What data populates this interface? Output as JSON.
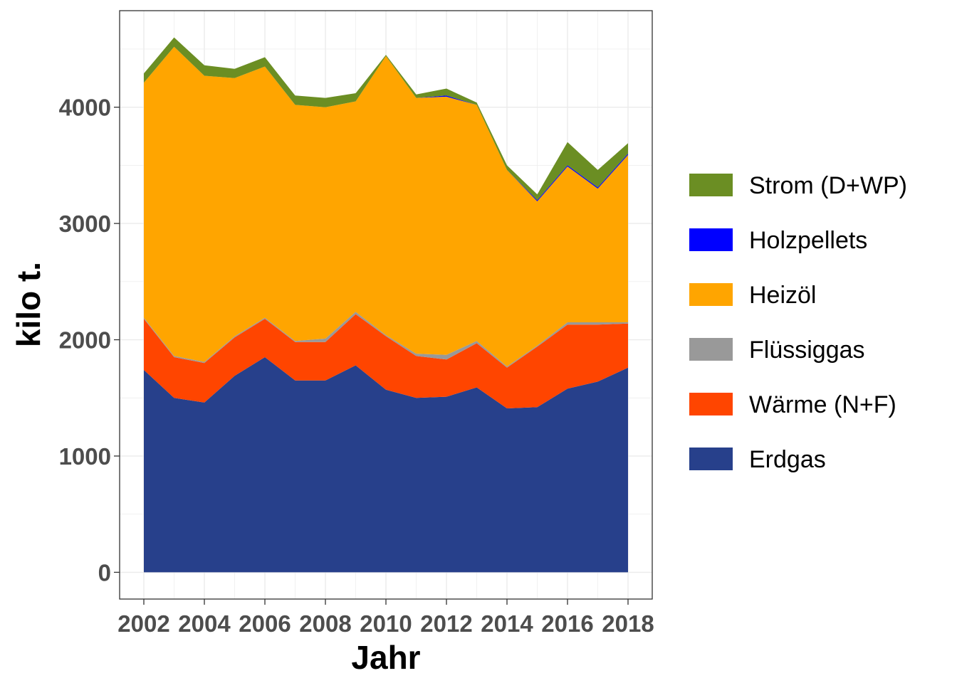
{
  "chart_data": {
    "type": "area",
    "stacked": true,
    "x": [
      2002,
      2003,
      2004,
      2005,
      2006,
      2007,
      2008,
      2009,
      2010,
      2011,
      2012,
      2013,
      2014,
      2015,
      2016,
      2017,
      2018
    ],
    "xlabel": "Jahr",
    "ylabel": "kilo t.",
    "xticks": [
      "2002",
      "2004",
      "2006",
      "2008",
      "2010",
      "2012",
      "2014",
      "2016",
      "2018"
    ],
    "yticks": [
      "0",
      "1000",
      "2000",
      "3000",
      "4000"
    ],
    "ylim": [
      -230,
      4830
    ],
    "xlim": [
      2001.2,
      2018.8
    ],
    "grid": true,
    "legend_position": "right",
    "series": [
      {
        "name": "Erdgas",
        "color": "#27408B",
        "values": [
          1740,
          1500,
          1460,
          1690,
          1850,
          1650,
          1650,
          1780,
          1570,
          1500,
          1510,
          1590,
          1410,
          1420,
          1580,
          1640,
          1760
        ]
      },
      {
        "name": "Wärme (N+F)",
        "color": "#FF4500",
        "values": [
          440,
          350,
          340,
          330,
          330,
          330,
          330,
          440,
          460,
          360,
          320,
          380,
          350,
          520,
          550,
          490,
          380
        ]
      },
      {
        "name": "Flüssiggas",
        "color": "#999999",
        "values": [
          10,
          10,
          10,
          10,
          10,
          10,
          30,
          20,
          10,
          20,
          40,
          20,
          10,
          10,
          20,
          20,
          10
        ]
      },
      {
        "name": "Heizöl",
        "color": "#FFA500",
        "values": [
          2020,
          2660,
          2460,
          2220,
          2160,
          2030,
          1990,
          1810,
          2400,
          2200,
          2220,
          2030,
          1690,
          1240,
          1340,
          1150,
          1440
        ]
      },
      {
        "name": "Holzpellets",
        "color": "#0000FF",
        "values": [
          0,
          0,
          0,
          0,
          0,
          0,
          0,
          0,
          0,
          0,
          10,
          0,
          0,
          10,
          10,
          10,
          10
        ]
      },
      {
        "name": "Strom (D+WP)",
        "color": "#6B8E23",
        "values": [
          80,
          80,
          90,
          80,
          80,
          80,
          80,
          70,
          10,
          30,
          60,
          20,
          40,
          50,
          200,
          150,
          90
        ]
      }
    ],
    "legend_order": [
      "Strom (D+WP)",
      "Holzpellets",
      "Heizöl",
      "Flüssiggas",
      "Wärme (N+F)",
      "Erdgas"
    ]
  }
}
